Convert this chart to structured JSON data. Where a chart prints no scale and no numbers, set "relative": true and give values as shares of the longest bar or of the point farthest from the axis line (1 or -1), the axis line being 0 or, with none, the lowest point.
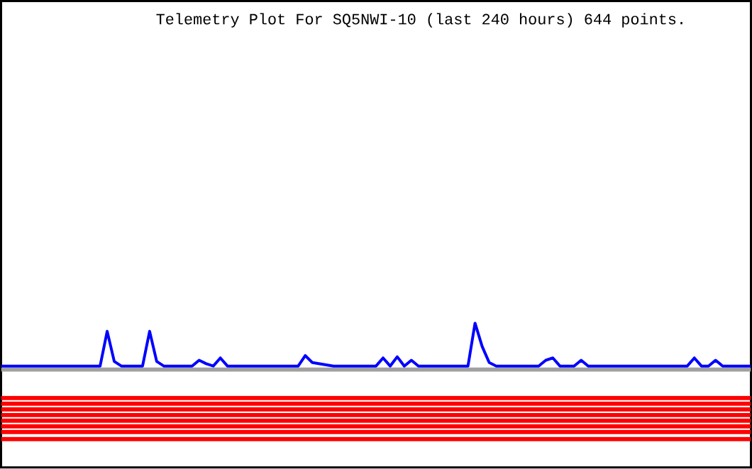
{
  "chart_data": {
    "type": "line",
    "title": "Telemetry Plot For SQ5NWI-10 (last 240 hours) 644 points.",
    "relative": true,
    "categories": [
      null,
      null,
      null,
      null,
      null,
      null,
      null,
      null,
      null,
      null,
      null,
      null,
      null,
      null,
      null,
      null,
      null,
      null,
      null,
      null,
      null,
      null,
      null,
      null,
      null,
      null,
      null,
      null,
      null,
      null,
      null,
      null,
      null,
      null,
      null,
      null,
      null,
      null,
      null,
      null,
      null,
      null,
      null,
      null,
      null,
      null,
      null,
      null,
      null,
      null,
      null,
      null,
      null,
      null,
      null,
      null,
      null,
      null,
      null,
      null,
      null,
      null,
      null,
      null,
      null,
      null,
      null,
      null,
      null,
      null,
      null,
      null,
      null,
      null,
      null,
      null,
      null,
      null,
      null,
      null,
      null,
      null,
      null,
      null,
      null,
      null,
      null,
      null,
      null,
      null,
      null,
      null,
      null,
      null,
      null,
      null,
      null,
      null,
      null,
      null,
      null,
      null,
      null,
      null,
      null,
      null,
      null
    ],
    "series": [
      {
        "color": "#0000ff",
        "values": [
          0.63,
          0.63,
          0.63,
          0.63,
          0.63,
          0.63,
          0.63,
          0.63,
          0.63,
          0.63,
          0.63,
          0.63,
          0.63,
          0.63,
          0.63,
          0.93,
          0.67,
          0.63,
          0.63,
          0.63,
          0.63,
          0.93,
          0.67,
          0.63,
          0.63,
          0.63,
          0.63,
          0.63,
          0.68,
          0.65,
          0.63,
          0.7,
          0.63,
          0.63,
          0.63,
          0.63,
          0.63,
          0.63,
          0.63,
          0.63,
          0.63,
          0.63,
          0.63,
          0.72,
          0.66,
          0.65,
          0.64,
          0.63,
          0.63,
          0.63,
          0.63,
          0.63,
          0.63,
          0.63,
          0.7,
          0.63,
          0.71,
          0.63,
          0.68,
          0.63,
          0.63,
          0.63,
          0.63,
          0.63,
          0.63,
          0.63,
          0.63,
          1.0,
          0.8,
          0.66,
          0.63,
          0.63,
          0.63,
          0.63,
          0.63,
          0.63,
          0.63,
          0.68,
          0.7,
          0.63,
          0.63,
          0.63,
          0.68,
          0.63,
          0.63,
          0.63,
          0.63,
          0.63,
          0.63,
          0.63,
          0.63,
          0.63,
          0.63,
          0.63,
          0.63,
          0.63,
          0.63,
          0.63,
          0.7,
          0.63,
          0.63,
          0.68,
          0.63,
          0.63,
          0.63,
          0.63,
          0.63
        ]
      }
    ],
    "ref_lines": [
      {
        "axis": "y",
        "value": 0.6,
        "color": "#a0a0a0"
      },
      {
        "axis": "y",
        "value": 0.354,
        "color": "#ff0000"
      },
      {
        "axis": "y",
        "value": 0.305,
        "color": "#ff0000"
      },
      {
        "axis": "y",
        "value": 0.256,
        "color": "#ff0000"
      },
      {
        "axis": "y",
        "value": 0.207,
        "color": "#ff0000"
      },
      {
        "axis": "y",
        "value": 0.159,
        "color": "#ff0000"
      },
      {
        "axis": "y",
        "value": 0.11,
        "color": "#ff0000"
      },
      {
        "axis": "y",
        "value": 0.061,
        "color": "#ff0000"
      },
      {
        "axis": "y",
        "value": 0.0,
        "color": "#ff0000"
      }
    ]
  }
}
